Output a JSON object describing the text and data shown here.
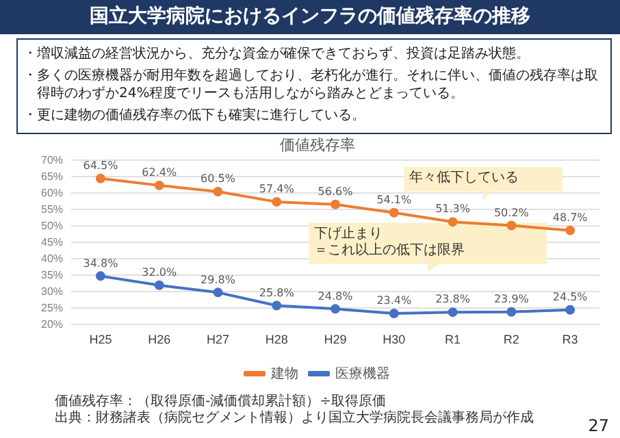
{
  "chart_data": {
    "type": "line",
    "title": "国立大学病院におけるインフラの価値残存率の推移",
    "subtitle": "価値残存率",
    "categories": [
      "H25",
      "H26",
      "H27",
      "H28",
      "H29",
      "H30",
      "R1",
      "R2",
      "R3"
    ],
    "series": [
      {
        "name": "建物",
        "color": "#ed7d31",
        "values": [
          64.5,
          62.4,
          60.5,
          57.4,
          56.6,
          54.1,
          51.3,
          50.2,
          48.7
        ],
        "value_labels": [
          "64.5%",
          "62.4%",
          "60.5%",
          "57.4%",
          "56.6%",
          "54.1%",
          "51.3%",
          "50.2%",
          "48.7%"
        ]
      },
      {
        "name": "医療機器",
        "color": "#4472c4",
        "values": [
          34.8,
          32.0,
          29.8,
          25.8,
          24.8,
          23.4,
          23.8,
          23.9,
          24.5
        ],
        "value_labels": [
          "34.8%",
          "32.0%",
          "29.8%",
          "25.8%",
          "24.8%",
          "23.4%",
          "23.8%",
          "23.9%",
          "24.5%"
        ]
      }
    ],
    "ylim": [
      20,
      70
    ],
    "yticks": [
      {
        "value": 20,
        "label": "20%"
      },
      {
        "value": 25,
        "label": "25%"
      },
      {
        "value": 30,
        "label": "30%"
      },
      {
        "value": 35,
        "label": "35%"
      },
      {
        "value": 40,
        "label": "40%"
      },
      {
        "value": 45,
        "label": "45%"
      },
      {
        "value": 50,
        "label": "50%"
      },
      {
        "value": 55,
        "label": "55%"
      },
      {
        "value": 60,
        "label": "60%"
      },
      {
        "value": 65,
        "label": "65%"
      },
      {
        "value": 70,
        "label": "70%"
      }
    ],
    "grid": "y",
    "legend": "bottom",
    "marker": "circle",
    "line_style": "solid",
    "annotations": [
      "・増収減益の経営状況から、充分な資金が確保できておらず、投資は足踏み状態。",
      "・多くの医療機器が耐用年数を超過しており、老朽化が進行。それに伴い、価値の残存率は取得時のわずか24%程度でリースも活用しながら踏みとどまっている。",
      "・更に建物の価値残存率の低下も確実に進行している。",
      "年々低下している",
      "下げ止まり",
      "＝これ以上の低下は限界",
      "価値残存率：（取得原価-減価償却累計額）÷取得原価",
      "出典：財務諸表（病院セグメント情報）より国立大学病院長会議事務局が作成",
      "27"
    ]
  }
}
